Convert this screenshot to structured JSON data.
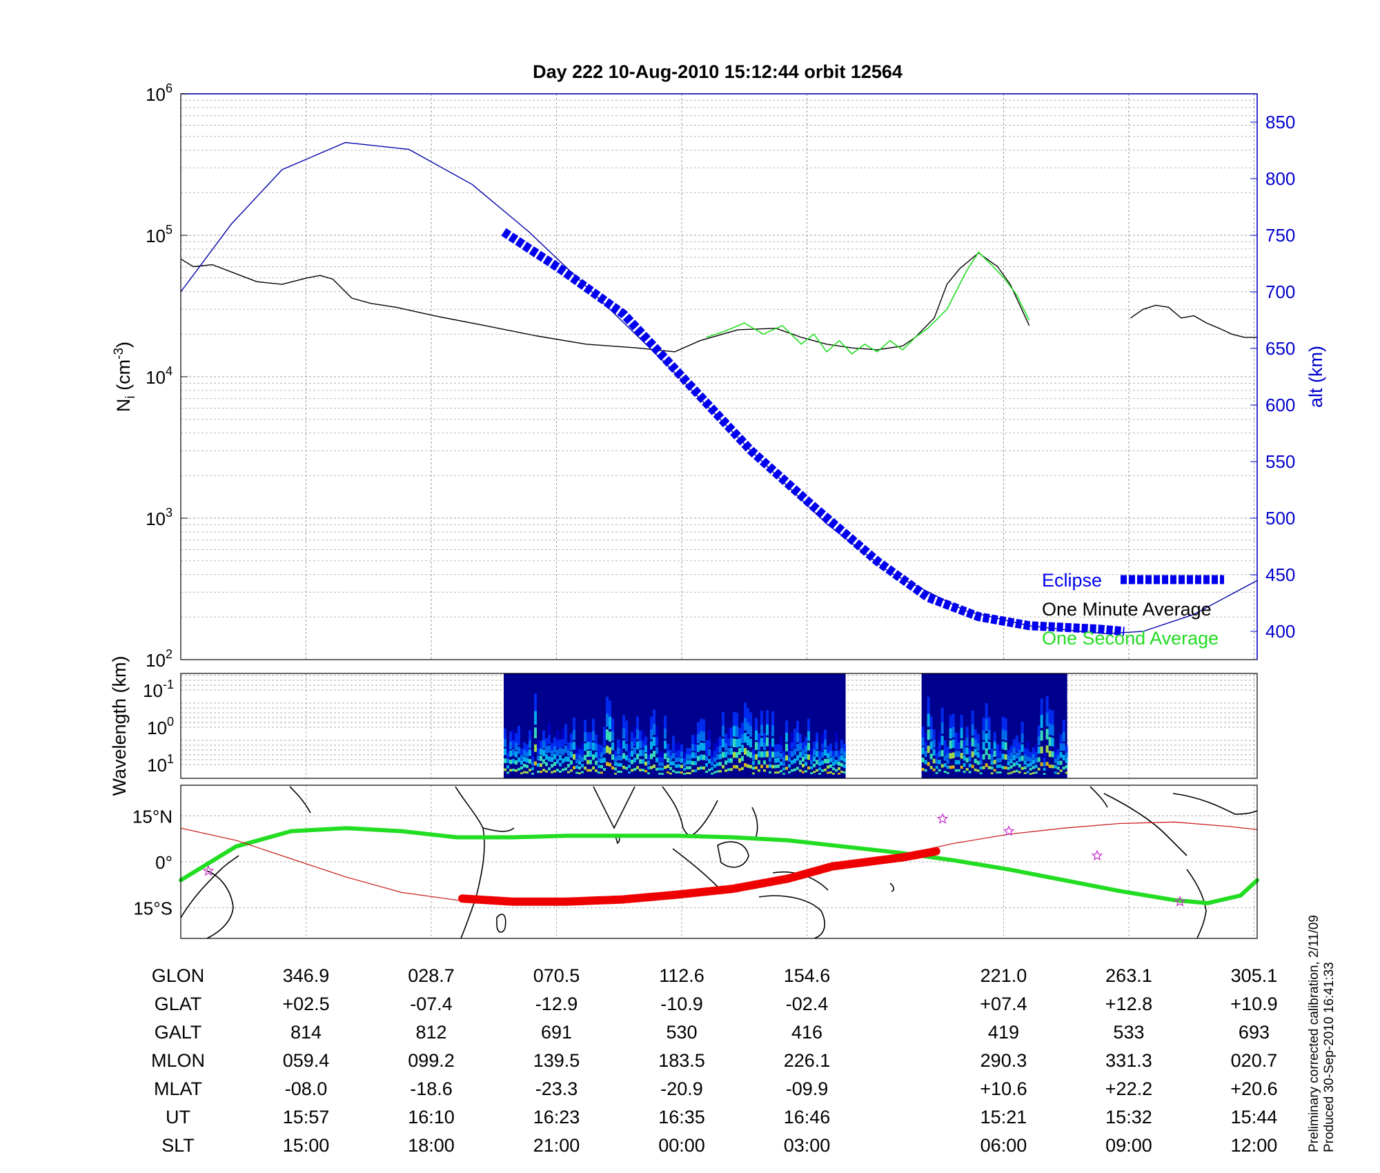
{
  "chart_data": [
    {
      "type": "line",
      "title": "Day 222  10-Aug-2010 15:12:44   orbit 12564",
      "ylabel_left": "N_i (cm^-3)",
      "ylabel_left_main": "N",
      "ylabel_left_sub": "i",
      "ylabel_left_rest": " (cm",
      "ylabel_left_exp": "-3",
      "ylabel_left_close": ")",
      "ylabel_right": "alt (km)",
      "yscale_left": "log",
      "ylim_left": [
        100,
        1000000
      ],
      "yticks_left": [
        {
          "base": "10",
          "exp": "2",
          "value": 100
        },
        {
          "base": "10",
          "exp": "3",
          "value": 1000
        },
        {
          "base": "10",
          "exp": "4",
          "value": 10000
        },
        {
          "base": "10",
          "exp": "5",
          "value": 100000
        },
        {
          "base": "10",
          "exp": "6",
          "value": 1000000
        }
      ],
      "ylim_right": [
        375,
        875
      ],
      "yticks_right": [
        "400",
        "450",
        "500",
        "550",
        "600",
        "650",
        "700",
        "750",
        "800",
        "850"
      ],
      "grid": true,
      "legend_position": "bottom-right",
      "legend": [
        {
          "label": "Eclipse",
          "color": "#0000ee"
        },
        {
          "label": "One Minute Average",
          "color": "#000000"
        },
        {
          "label": "One Second Average",
          "color": "#22dd22"
        }
      ],
      "x_range": [
        0,
        8.5
      ],
      "gaps": [
        [
          5.25,
          5.85
        ]
      ],
      "series": [
        {
          "name": "One Minute Average",
          "color": "#000000",
          "points": [
            [
              0,
              68000
            ],
            [
              0.1,
              60000
            ],
            [
              0.25,
              62000
            ],
            [
              0.4,
              55000
            ],
            [
              0.6,
              47000
            ],
            [
              0.8,
              45000
            ],
            [
              1.0,
              50000
            ],
            [
              1.1,
              52000
            ],
            [
              1.2,
              49000
            ],
            [
              1.35,
              36000
            ],
            [
              1.5,
              33000
            ],
            [
              1.7,
              31000
            ],
            [
              2.0,
              27000
            ],
            [
              2.4,
              23000
            ],
            [
              2.8,
              19500
            ],
            [
              3.2,
              17000
            ],
            [
              3.6,
              16000
            ],
            [
              3.9,
              15000
            ],
            [
              4.1,
              18000
            ],
            [
              4.4,
              21500
            ],
            [
              4.7,
              22000
            ],
            [
              4.9,
              19000
            ],
            [
              5.1,
              17000
            ],
            [
              5.3,
              16000
            ],
            [
              5.5,
              15500
            ],
            [
              5.7,
              16500
            ],
            [
              5.8,
              19000
            ],
            [
              5.95,
              26000
            ],
            [
              6.05,
              45000
            ],
            [
              6.15,
              58000
            ],
            [
              6.3,
              75000
            ],
            [
              6.45,
              60000
            ],
            [
              6.55,
              45000
            ],
            [
              6.7,
              23000
            ]
          ]
        },
        {
          "name": "One Minute Average (after gap)",
          "color": "#000000",
          "points": [
            [
              7.5,
              26000
            ],
            [
              7.6,
              30000
            ],
            [
              7.7,
              32000
            ],
            [
              7.8,
              31000
            ],
            [
              7.9,
              26000
            ],
            [
              8.0,
              27000
            ],
            [
              8.1,
              24000
            ],
            [
              8.2,
              22000
            ],
            [
              8.3,
              20000
            ],
            [
              8.4,
              19000
            ],
            [
              8.5,
              19000
            ]
          ]
        },
        {
          "name": "One Second Average",
          "color": "#22dd22",
          "points": [
            [
              4.15,
              19000
            ],
            [
              4.3,
              21000
            ],
            [
              4.45,
              24000
            ],
            [
              4.6,
              20000
            ],
            [
              4.75,
              23000
            ],
            [
              4.9,
              17000
            ],
            [
              5.0,
              20000
            ],
            [
              5.1,
              15000
            ],
            [
              5.2,
              18000
            ],
            [
              5.3,
              14500
            ],
            [
              5.4,
              17000
            ],
            [
              5.5,
              15000
            ],
            [
              5.6,
              18000
            ],
            [
              5.7,
              15500
            ],
            [
              5.8,
              19000
            ],
            [
              5.9,
              22000
            ],
            [
              6.05,
              30000
            ],
            [
              6.2,
              55000
            ],
            [
              6.3,
              76000
            ],
            [
              6.4,
              62000
            ],
            [
              6.5,
              50000
            ],
            [
              6.6,
              38000
            ],
            [
              6.7,
              25000
            ]
          ]
        },
        {
          "name": "Altitude",
          "axis": "right",
          "color": "#0000aa",
          "points": [
            [
              0,
              700
            ],
            [
              0.4,
              760
            ],
            [
              0.8,
              808
            ],
            [
              1.3,
              832
            ],
            [
              1.8,
              826
            ],
            [
              2.3,
              795
            ],
            [
              2.75,
              753
            ],
            [
              3.2,
              705
            ],
            [
              3.8,
              640
            ],
            [
              4.5,
              560
            ],
            [
              5.1,
              495
            ],
            [
              5.6,
              452
            ],
            [
              6.2,
              418
            ],
            [
              6.7,
              405
            ],
            [
              7.1,
              400
            ],
            [
              7.3,
              398
            ],
            [
              7.6,
              400
            ],
            [
              8.0,
              415
            ],
            [
              8.5,
              445
            ]
          ]
        },
        {
          "name": "Eclipse",
          "axis": "right",
          "color": "#0000ee",
          "points": [
            [
              2.55,
              753
            ],
            [
              3.0,
              720
            ],
            [
              3.5,
              680
            ],
            [
              4.0,
              620
            ],
            [
              4.5,
              560
            ],
            [
              5.0,
              510
            ],
            [
              5.5,
              462
            ],
            [
              5.9,
              430
            ],
            [
              6.3,
              413
            ],
            [
              6.7,
              405
            ],
            [
              7.25,
              402
            ],
            [
              7.45,
              400
            ]
          ]
        }
      ]
    },
    {
      "type": "heatmap",
      "ylabel": "Wavelength (km)",
      "yscale": "log",
      "yticks": [
        {
          "base": "10",
          "exp": "-1"
        },
        {
          "base": "10",
          "exp": "0"
        },
        {
          "base": "10",
          "exp": "1"
        }
      ],
      "segments": [
        [
          2.55,
          5.25
        ],
        [
          5.85,
          7.0
        ]
      ]
    },
    {
      "type": "map",
      "yticks": [
        "15°N",
        "0°",
        "15°S"
      ],
      "ylim": [
        -25,
        25
      ],
      "series": [
        {
          "name": "Magnetic equator",
          "color": "#22dd22",
          "points": [
            [
              0,
              -6
            ],
            [
              0.5,
              5
            ],
            [
              1.0,
              10
            ],
            [
              1.5,
              11
            ],
            [
              2.0,
              10
            ],
            [
              2.5,
              8
            ],
            [
              3.0,
              8
            ],
            [
              3.5,
              8.5
            ],
            [
              4.0,
              8.5
            ],
            [
              4.5,
              8.5
            ],
            [
              5.0,
              8
            ],
            [
              5.5,
              7
            ],
            [
              6.0,
              5
            ],
            [
              6.5,
              3
            ],
            [
              7.0,
              0.5
            ],
            [
              7.5,
              -2.5
            ],
            [
              8.0,
              -6
            ],
            [
              8.5,
              -9.5
            ],
            [
              9.0,
              -12.5
            ],
            [
              9.3,
              -13.5
            ],
            [
              9.6,
              -11
            ],
            [
              9.75,
              -6
            ]
          ]
        },
        {
          "name": "Orbit track",
          "color": "#cc2222",
          "points": [
            [
              0,
              11
            ],
            [
              0.5,
              7
            ],
            [
              1.0,
              1
            ],
            [
              1.5,
              -5
            ],
            [
              2.0,
              -10
            ],
            [
              2.5,
              -12.5
            ],
            [
              3.0,
              -13
            ],
            [
              3.5,
              -13
            ],
            [
              4.0,
              -12
            ],
            [
              4.5,
              -10
            ],
            [
              5.0,
              -8
            ],
            [
              5.5,
              -5
            ],
            [
              6.0,
              -1.5
            ],
            [
              6.5,
              2
            ],
            [
              7.0,
              6
            ],
            [
              7.5,
              9
            ],
            [
              8.0,
              11
            ],
            [
              8.5,
              12.5
            ],
            [
              9.0,
              13
            ],
            [
              9.5,
              11.5
            ],
            [
              9.75,
              10.5
            ]
          ]
        },
        {
          "name": "Eclipse (track)",
          "color": "#ee0000",
          "points": [
            [
              2.55,
              -12
            ],
            [
              3.0,
              -13
            ],
            [
              3.5,
              -13
            ],
            [
              4.0,
              -12.3
            ],
            [
              4.5,
              -10.7
            ],
            [
              5.0,
              -8.8
            ],
            [
              5.5,
              -5.5
            ],
            [
              5.9,
              -1.5
            ],
            [
              6.55,
              1.5
            ],
            [
              6.85,
              3.5
            ]
          ]
        }
      ]
    }
  ],
  "table": {
    "rows": [
      {
        "label": "GLON",
        "values": [
          "346.9",
          "028.7",
          "070.5",
          "112.6",
          "154.6",
          "221.0",
          "263.1",
          "305.1"
        ]
      },
      {
        "label": "GLAT",
        "values": [
          "+02.5",
          "-07.4",
          "-12.9",
          "-10.9",
          "-02.4",
          "+07.4",
          "+12.8",
          "+10.9"
        ]
      },
      {
        "label": "GALT",
        "values": [
          "814",
          "812",
          "691",
          "530",
          "416",
          "419",
          "533",
          "693"
        ]
      },
      {
        "label": "MLON",
        "values": [
          "059.4",
          "099.2",
          "139.5",
          "183.5",
          "226.1",
          "290.3",
          "331.3",
          "020.7"
        ]
      },
      {
        "label": "MLAT",
        "values": [
          "-08.0",
          "-18.6",
          "-23.3",
          "-20.9",
          "-09.9",
          "+10.6",
          "+22.2",
          "+20.6"
        ]
      },
      {
        "label": "UT",
        "values": [
          "15:57",
          "16:10",
          "16:23",
          "16:35",
          "16:46",
          "15:21",
          "15:32",
          "15:44"
        ]
      },
      {
        "label": "SLT",
        "values": [
          "15:00",
          "18:00",
          "21:00",
          "00:00",
          "03:00",
          "06:00",
          "09:00",
          "12:00"
        ]
      }
    ]
  },
  "footer": {
    "line1": "Preliminary corrected calibration, 2/11/09",
    "line2": "Produced 30-Sep-2010 16:41:33"
  }
}
